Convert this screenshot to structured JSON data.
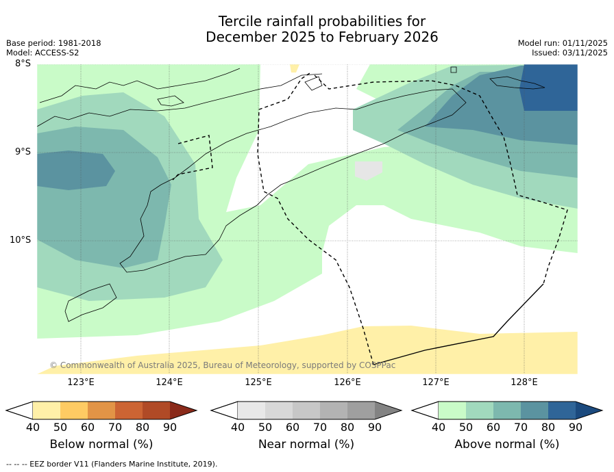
{
  "header": {
    "title_line1": "Tercile rainfall probabilities for",
    "title_line2": "December 2025 to February 2026",
    "base_period": "Base period: 1981-2018",
    "model": "Model: ACCESS-S2",
    "model_run": "Model run: 01/11/2025",
    "issued": "Issued: 03/11/2025"
  },
  "map": {
    "lat_labels": [
      "8°S",
      "9°S",
      "10°S"
    ],
    "lon_labels": [
      "123°E",
      "124°E",
      "125°E",
      "126°E",
      "127°E",
      "128°E"
    ],
    "copyright": "© Commonwealth of Australia 2025, Bureau of Meteorology, supported by COSPPac"
  },
  "colorbars": [
    {
      "title": "Below normal (%)",
      "ticks": [
        "40",
        "50",
        "60",
        "70",
        "80",
        "90"
      ],
      "colors": [
        "#fff0a8",
        "#fecb63",
        "#e29446",
        "#cc6433",
        "#b04a26",
        "#8a2a1a"
      ]
    },
    {
      "title": "Near normal (%)",
      "ticks": [
        "40",
        "50",
        "60",
        "70",
        "80",
        "90"
      ],
      "colors": [
        "#e8e8e8",
        "#d8d8d8",
        "#c7c7c7",
        "#b3b3b3",
        "#9f9f9f",
        "#838383"
      ]
    },
    {
      "title": "Above normal (%)",
      "ticks": [
        "40",
        "50",
        "60",
        "70",
        "80",
        "90"
      ],
      "colors": [
        "#c9fbc8",
        "#a1d9bd",
        "#7db8ae",
        "#5b93a0",
        "#2f6598",
        "#1b4a7e"
      ]
    }
  ],
  "footnote": "--  --  -- EEZ border V11 (Flanders Marine Institute, 2019)."
}
